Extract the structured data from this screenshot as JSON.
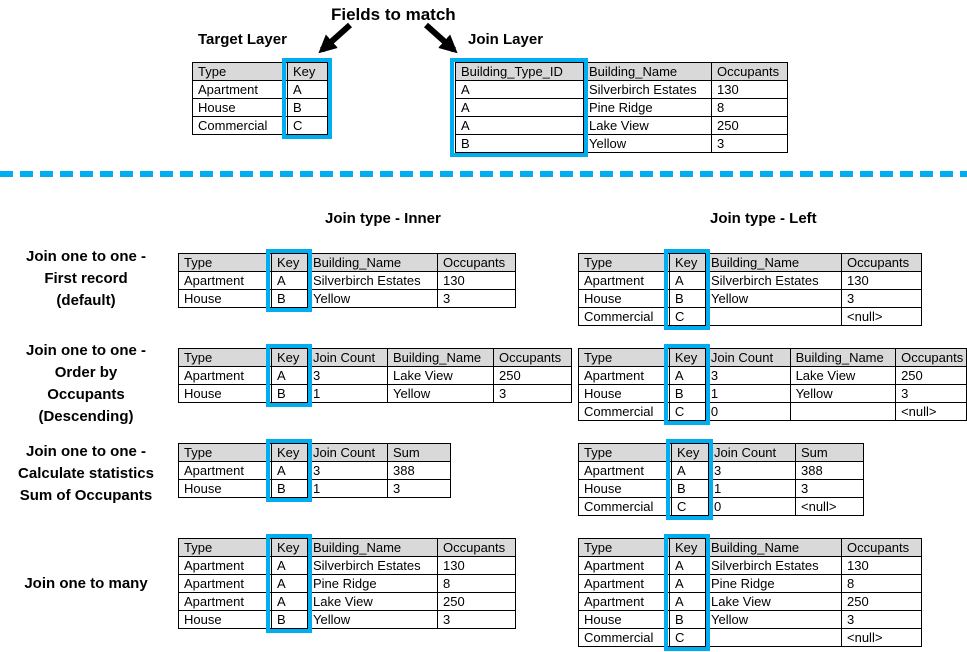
{
  "colors": {
    "accent": "#00AEEF",
    "header_bg": "#D9D9D9",
    "border": "#000000",
    "text": "#000000"
  },
  "top": {
    "fields_to_match": "Fields to match",
    "target_label": "Target Layer",
    "join_label": "Join Layer",
    "target": {
      "headers": [
        "Type",
        "Key"
      ],
      "key_col": 1,
      "rows": [
        [
          "Apartment",
          "A"
        ],
        [
          "House",
          "B"
        ],
        [
          "Commercial",
          "C"
        ]
      ]
    },
    "join": {
      "headers": [
        "Building_Type_ID",
        "Building_Name",
        "Occupants"
      ],
      "key_col": 0,
      "rows": [
        [
          "A",
          "Silverbirch Estates",
          "130"
        ],
        [
          "A",
          "Pine Ridge",
          "8"
        ],
        [
          "A",
          "Lake View",
          "250"
        ],
        [
          "B",
          "Yellow",
          "3"
        ]
      ]
    }
  },
  "sections": {
    "inner": "Join type - Inner",
    "left": "Join type - Left"
  },
  "examples": [
    {
      "label_lines": [
        "Join one to one -",
        "First record",
        "(default)"
      ],
      "inner": {
        "headers": [
          "Type",
          "Key",
          "Building_Name",
          "Occupants"
        ],
        "key_col": 1,
        "rows": [
          [
            "Apartment",
            "A",
            "Silverbirch Estates",
            "130"
          ],
          [
            "House",
            "B",
            "Yellow",
            "3"
          ]
        ]
      },
      "left": {
        "headers": [
          "Type",
          "Key",
          "Building_Name",
          "Occupants"
        ],
        "key_col": 1,
        "rows": [
          [
            "Apartment",
            "A",
            "Silverbirch Estates",
            "130"
          ],
          [
            "House",
            "B",
            "Yellow",
            "3"
          ],
          [
            "Commercial",
            "C",
            "",
            "<null>"
          ]
        ]
      }
    },
    {
      "label_lines": [
        "Join one to one -",
        "Order by",
        "Occupants",
        "(Descending)"
      ],
      "inner": {
        "headers": [
          "Type",
          "Key",
          "Join Count",
          "Building_Name",
          "Occupants"
        ],
        "key_col": 1,
        "rows": [
          [
            "Apartment",
            "A",
            "3",
            "Lake View",
            "250"
          ],
          [
            "House",
            "B",
            "1",
            "Yellow",
            "3"
          ]
        ]
      },
      "left": {
        "headers": [
          "Type",
          "Key",
          "Join Count",
          "Building_Name",
          "Occupants"
        ],
        "key_col": 1,
        "rows": [
          [
            "Apartment",
            "A",
            "3",
            "Lake View",
            "250"
          ],
          [
            "House",
            "B",
            "1",
            "Yellow",
            "3"
          ],
          [
            "Commercial",
            "C",
            "0",
            "",
            "<null>"
          ]
        ]
      }
    },
    {
      "label_lines": [
        "Join one to one -",
        "Calculate statistics",
        "Sum of Occupants"
      ],
      "inner": {
        "headers": [
          "Type",
          "Key",
          "Join Count",
          "Sum"
        ],
        "key_col": 1,
        "rows": [
          [
            "Apartment",
            "A",
            "3",
            "388"
          ],
          [
            "House",
            "B",
            "1",
            "3"
          ]
        ]
      },
      "left": {
        "headers": [
          "Type",
          "Key",
          "Join Count",
          "Sum"
        ],
        "key_col": 1,
        "rows": [
          [
            "Apartment",
            "A",
            "3",
            "388"
          ],
          [
            "House",
            "B",
            "1",
            "3"
          ],
          [
            "Commercial",
            "C",
            "0",
            "<null>"
          ]
        ]
      }
    },
    {
      "label_lines": [
        "Join one to many"
      ],
      "inner": {
        "headers": [
          "Type",
          "Key",
          "Building_Name",
          "Occupants"
        ],
        "key_col": 1,
        "rows": [
          [
            "Apartment",
            "A",
            "Silverbirch Estates",
            "130"
          ],
          [
            "Apartment",
            "A",
            "Pine Ridge",
            "8"
          ],
          [
            "Apartment",
            "A",
            "Lake View",
            "250"
          ],
          [
            "House",
            "B",
            "Yellow",
            "3"
          ]
        ]
      },
      "left": {
        "headers": [
          "Type",
          "Key",
          "Building_Name",
          "Occupants"
        ],
        "key_col": 1,
        "rows": [
          [
            "Apartment",
            "A",
            "Silverbirch Estates",
            "130"
          ],
          [
            "Apartment",
            "A",
            "Pine Ridge",
            "8"
          ],
          [
            "Apartment",
            "A",
            "Lake View",
            "250"
          ],
          [
            "House",
            "B",
            "Yellow",
            "3"
          ],
          [
            "Commercial",
            "C",
            "",
            "<null>"
          ]
        ]
      }
    }
  ]
}
